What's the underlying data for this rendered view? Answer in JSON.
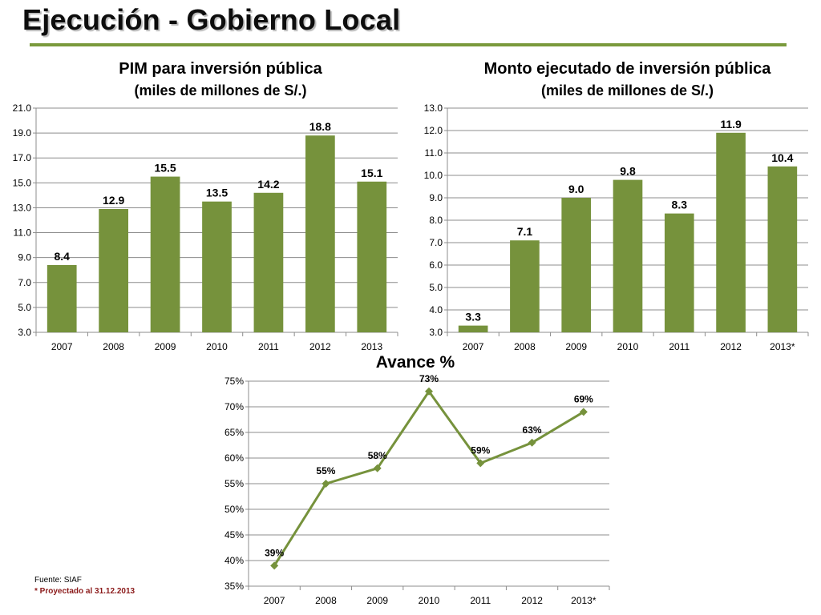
{
  "page": {
    "title": "Ejecución - Gobierno Local",
    "source": "Fuente: SIAF",
    "projection_note": "* Proyectado al 31.12.2013",
    "colors": {
      "accent": "#7a9a3c",
      "bar": "#76923c",
      "line": "#76923c",
      "grid": "#8c8c8c",
      "note_red": "#8b1a1a"
    }
  },
  "chart_data": [
    {
      "id": "pim",
      "type": "bar",
      "title": "PIM para inversión pública",
      "subtitle": "(miles de millones de S/.)",
      "categories": [
        "2007",
        "2008",
        "2009",
        "2010",
        "2011",
        "2012",
        "2013"
      ],
      "values": [
        8.4,
        12.9,
        15.5,
        13.5,
        14.2,
        18.8,
        15.1
      ],
      "data_labels": [
        "8.4",
        "12.9",
        "15.5",
        "13.5",
        "14.2",
        "18.8",
        "15.1"
      ],
      "ylim": [
        3.0,
        21.0
      ],
      "yticks": [
        "3.0",
        "5.0",
        "7.0",
        "9.0",
        "11.0",
        "13.0",
        "15.0",
        "17.0",
        "19.0",
        "21.0"
      ],
      "grid": true
    },
    {
      "id": "monto",
      "type": "bar",
      "title": "Monto ejecutado de inversión pública",
      "subtitle": "(miles de millones de S/.)",
      "categories": [
        "2007",
        "2008",
        "2009",
        "2010",
        "2011",
        "2012",
        "2013*"
      ],
      "values": [
        3.3,
        7.1,
        9.0,
        9.8,
        8.3,
        11.9,
        10.4
      ],
      "data_labels": [
        "3.3",
        "7.1",
        "9.0",
        "9.8",
        "8.3",
        "11.9",
        "10.4"
      ],
      "ylim": [
        3.0,
        13.0
      ],
      "yticks": [
        "3.0",
        "4.0",
        "5.0",
        "6.0",
        "7.0",
        "8.0",
        "9.0",
        "10.0",
        "11.0",
        "12.0",
        "13.0"
      ],
      "grid": true
    },
    {
      "id": "avance",
      "type": "line",
      "title": "Avance %",
      "categories": [
        "2007",
        "2008",
        "2009",
        "2010",
        "2011",
        "2012",
        "2013*"
      ],
      "values": [
        39,
        55,
        58,
        73,
        59,
        63,
        69
      ],
      "data_labels": [
        "39%",
        "55%",
        "58%",
        "73%",
        "59%",
        "63%",
        "69%"
      ],
      "ylim": [
        35,
        75
      ],
      "yticks": [
        "35%",
        "40%",
        "45%",
        "50%",
        "55%",
        "60%",
        "65%",
        "70%",
        "75%"
      ],
      "grid": true
    }
  ]
}
